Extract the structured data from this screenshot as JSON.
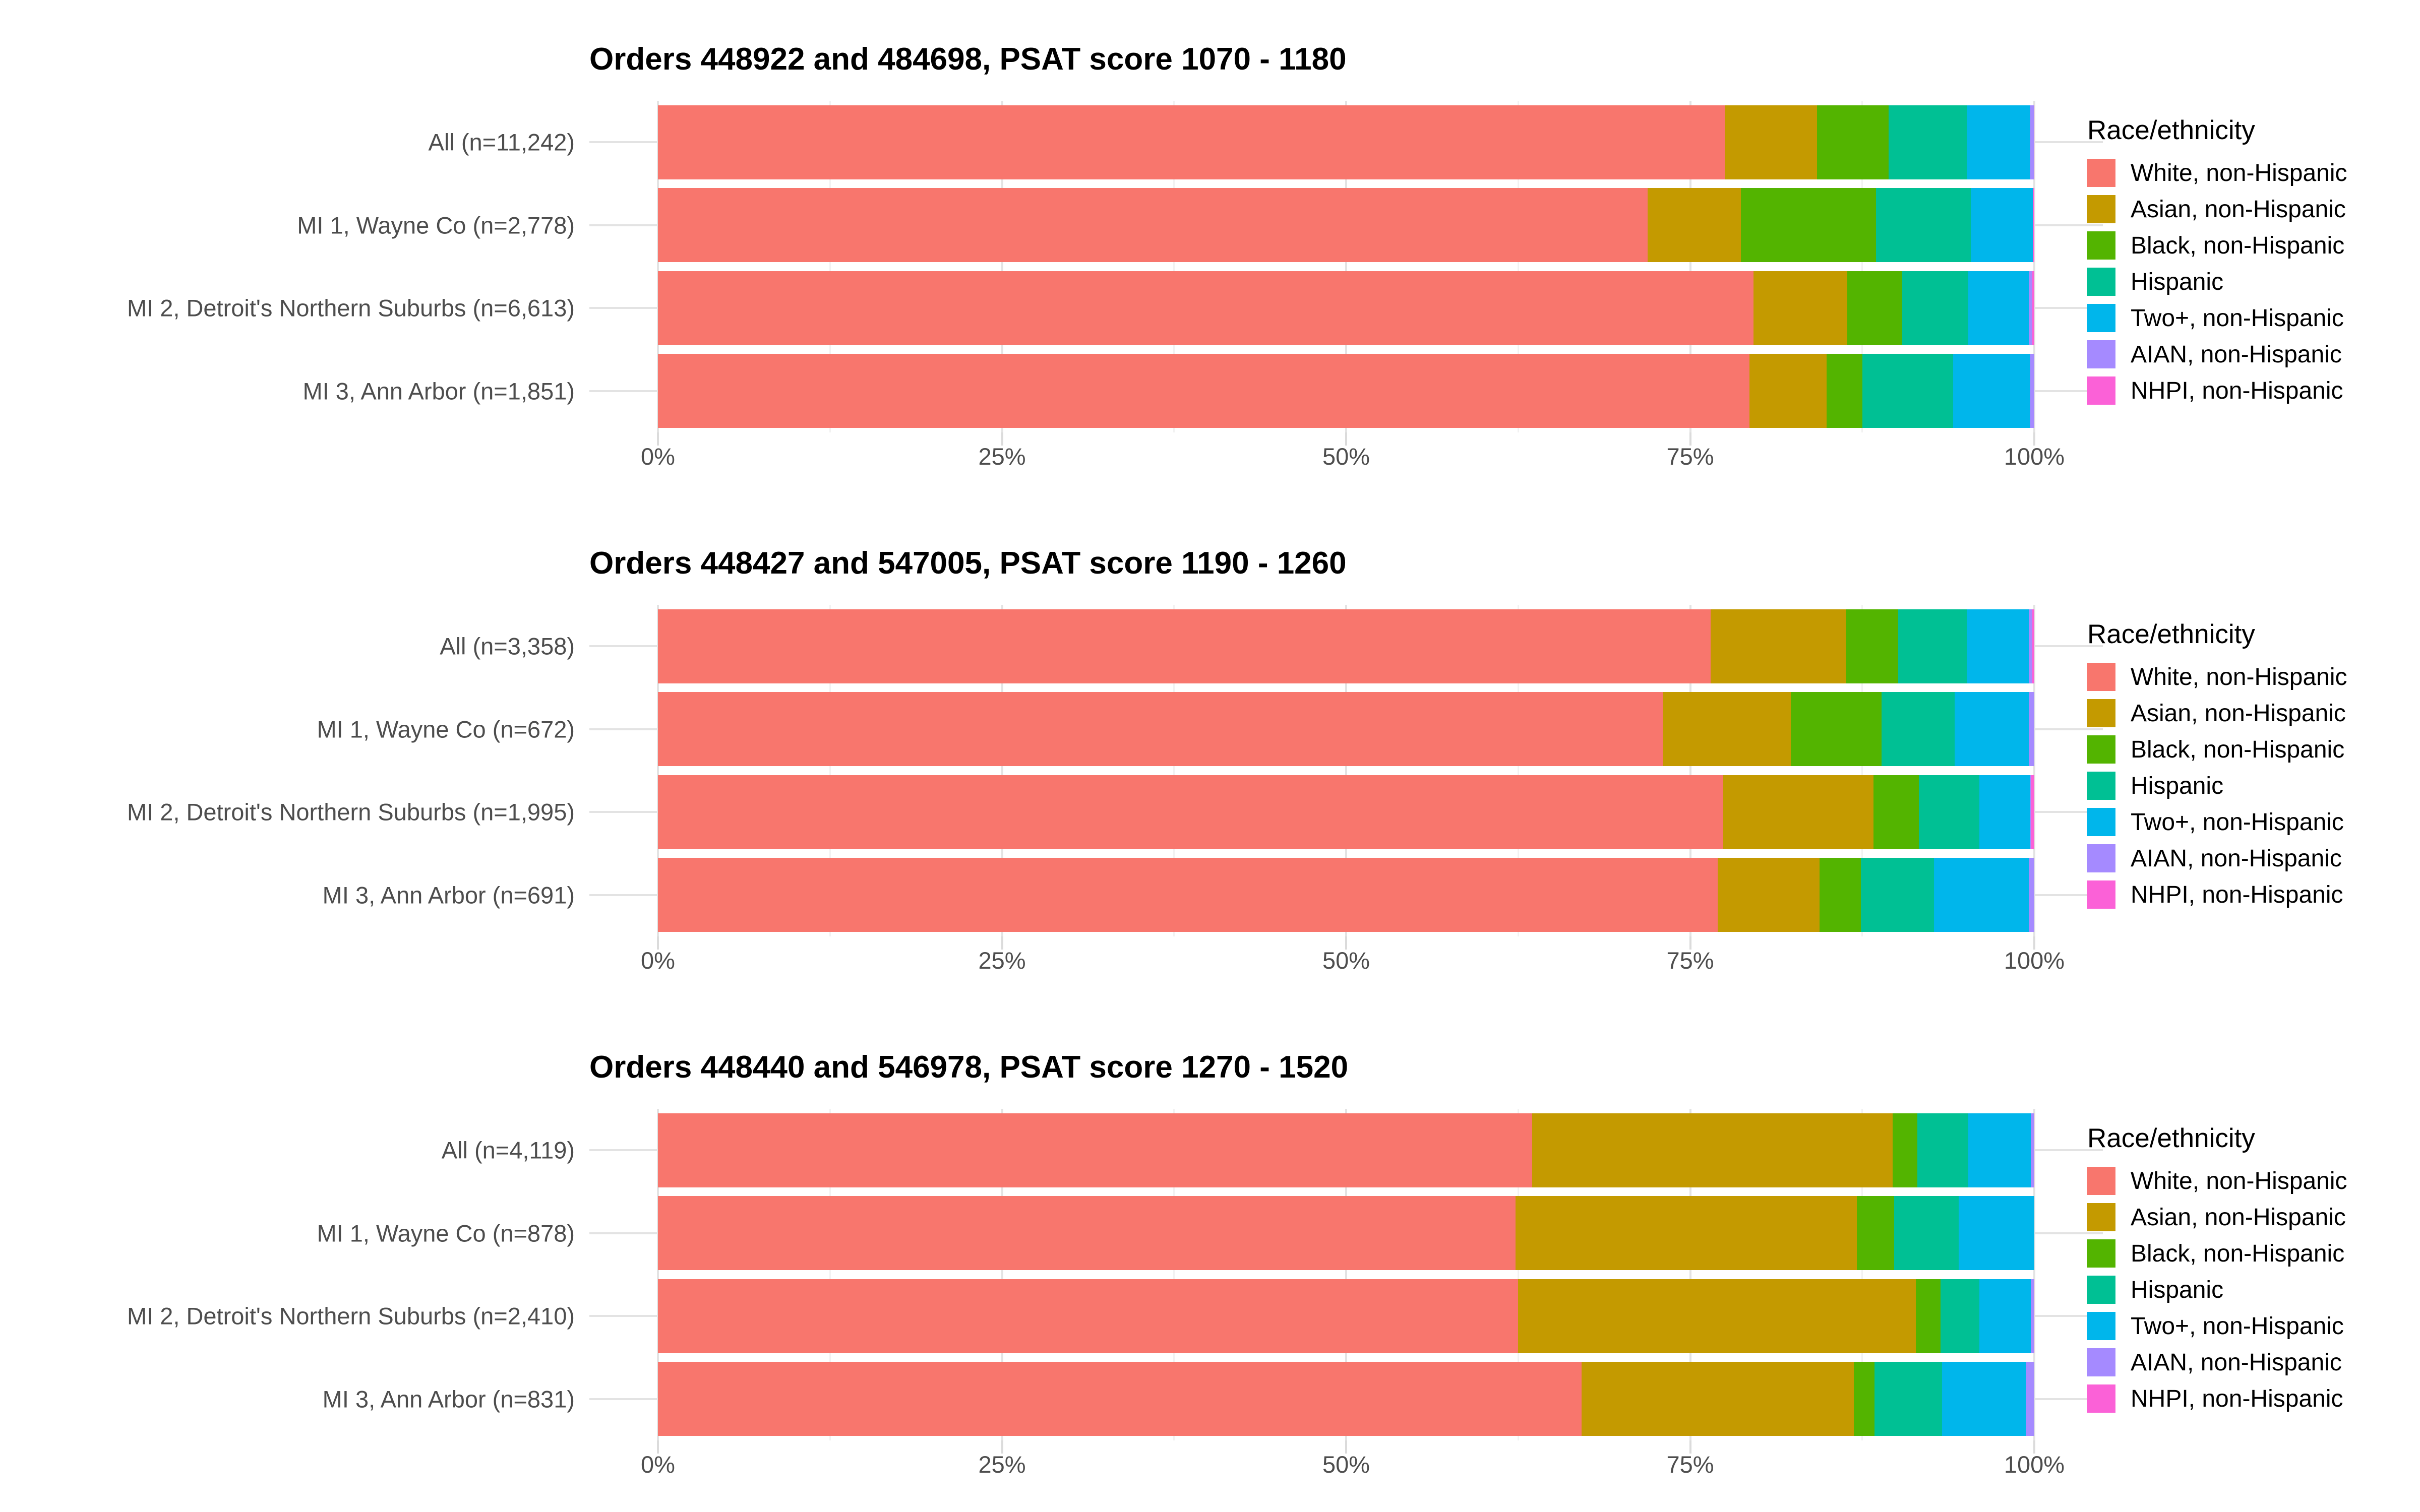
{
  "figure": {
    "legend_title": "Race/ethnicity",
    "x_tick_labels": [
      "0%",
      "25%",
      "50%",
      "75%",
      "100%"
    ],
    "x_tick_values": [
      0,
      25,
      50,
      75,
      100
    ],
    "minor_tick_values": [
      12.5,
      37.5,
      62.5,
      87.5
    ],
    "background_color": "#ffffff",
    "gridline_major_color": "#e3e3e3",
    "gridline_minor_color": "#f2f2f2",
    "axis_text_color": "#4d4d4d",
    "categories": [
      {
        "key": "white",
        "label": "White, non-Hispanic",
        "color": "#F8766D"
      },
      {
        "key": "asian",
        "label": "Asian, non-Hispanic",
        "color": "#C49A00"
      },
      {
        "key": "black",
        "label": "Black, non-Hispanic",
        "color": "#53B400"
      },
      {
        "key": "hispanic",
        "label": "Hispanic",
        "color": "#00C094"
      },
      {
        "key": "two_plus",
        "label": "Two+, non-Hispanic",
        "color": "#00B6EB"
      },
      {
        "key": "aian",
        "label": "AIAN, non-Hispanic",
        "color": "#A58AFF"
      },
      {
        "key": "nhpi",
        "label": "NHPI, non-Hispanic",
        "color": "#FB61D7"
      }
    ]
  },
  "chart_data": [
    {
      "type": "bar",
      "stacked": true,
      "orientation": "horizontal",
      "title": "Orders 448922 and 484698, PSAT score 1070 - 1180",
      "xlabel": "",
      "ylabel": "",
      "xlim": [
        0,
        100
      ],
      "legend_position": "right",
      "categories": [
        "All (n=11,242)",
        "MI 1, Wayne Co (n=2,778)",
        "MI 2, Detroit's Northern Suburbs (n=6,613)",
        "MI 3, Ann Arbor (n=1,851)"
      ],
      "series": [
        {
          "name": "White, non-Hispanic",
          "values": [
            77.5,
            71.9,
            79.6,
            79.3
          ]
        },
        {
          "name": "Asian, non-Hispanic",
          "values": [
            6.7,
            6.8,
            6.8,
            5.6
          ]
        },
        {
          "name": "Black, non-Hispanic",
          "values": [
            5.2,
            9.8,
            4.0,
            2.6
          ]
        },
        {
          "name": "Hispanic",
          "values": [
            5.7,
            6.9,
            4.8,
            6.6
          ]
        },
        {
          "name": "Two+, non-Hispanic",
          "values": [
            4.6,
            4.5,
            4.4,
            5.6
          ]
        },
        {
          "name": "AIAN, non-Hispanic",
          "values": [
            0.25,
            0.0,
            0.25,
            0.3
          ]
        },
        {
          "name": "NHPI, non-Hispanic",
          "values": [
            0.05,
            0.1,
            0.15,
            0.0
          ]
        }
      ]
    },
    {
      "type": "bar",
      "stacked": true,
      "orientation": "horizontal",
      "title": "Orders 448427 and 547005, PSAT score 1190 - 1260",
      "xlabel": "",
      "ylabel": "",
      "xlim": [
        0,
        100
      ],
      "legend_position": "right",
      "categories": [
        "All (n=3,358)",
        "MI 1, Wayne Co (n=672)",
        "MI 2, Detroit's Northern Suburbs (n=1,995)",
        "MI 3, Ann Arbor (n=691)"
      ],
      "series": [
        {
          "name": "White, non-Hispanic",
          "values": [
            76.5,
            73.0,
            77.4,
            77.0
          ]
        },
        {
          "name": "Asian, non-Hispanic",
          "values": [
            9.8,
            9.3,
            10.9,
            7.4
          ]
        },
        {
          "name": "Black, non-Hispanic",
          "values": [
            3.8,
            6.6,
            3.3,
            3.0
          ]
        },
        {
          "name": "Hispanic",
          "values": [
            5.0,
            5.3,
            4.4,
            5.3
          ]
        },
        {
          "name": "Two+, non-Hispanic",
          "values": [
            4.5,
            5.4,
            3.7,
            6.9
          ]
        },
        {
          "name": "AIAN, non-Hispanic",
          "values": [
            0.25,
            0.4,
            0.05,
            0.4
          ]
        },
        {
          "name": "NHPI, non-Hispanic",
          "values": [
            0.15,
            0.0,
            0.25,
            0.0
          ]
        }
      ]
    },
    {
      "type": "bar",
      "stacked": true,
      "orientation": "horizontal",
      "title": "Orders 448440 and 546978, PSAT score 1270 - 1520",
      "xlabel": "",
      "ylabel": "",
      "xlim": [
        0,
        100
      ],
      "legend_position": "right",
      "categories": [
        "All (n=4,119)",
        "MI 1, Wayne Co (n=878)",
        "MI 2, Detroit's Northern Suburbs (n=2,410)",
        "MI 3, Ann Arbor (n=831)"
      ],
      "series": [
        {
          "name": "White, non-Hispanic",
          "values": [
            63.5,
            62.3,
            62.5,
            67.1
          ]
        },
        {
          "name": "Asian, non-Hispanic",
          "values": [
            26.2,
            24.8,
            28.9,
            19.8
          ]
        },
        {
          "name": "Black, non-Hispanic",
          "values": [
            1.8,
            2.7,
            1.8,
            1.5
          ]
        },
        {
          "name": "Hispanic",
          "values": [
            3.7,
            4.7,
            2.8,
            4.9
          ]
        },
        {
          "name": "Two+, non-Hispanic",
          "values": [
            4.55,
            5.5,
            3.75,
            6.1
          ]
        },
        {
          "name": "AIAN, non-Hispanic",
          "values": [
            0.2,
            0.0,
            0.2,
            0.6
          ]
        },
        {
          "name": "NHPI, non-Hispanic",
          "values": [
            0.05,
            0.0,
            0.05,
            0.0
          ]
        }
      ]
    }
  ]
}
